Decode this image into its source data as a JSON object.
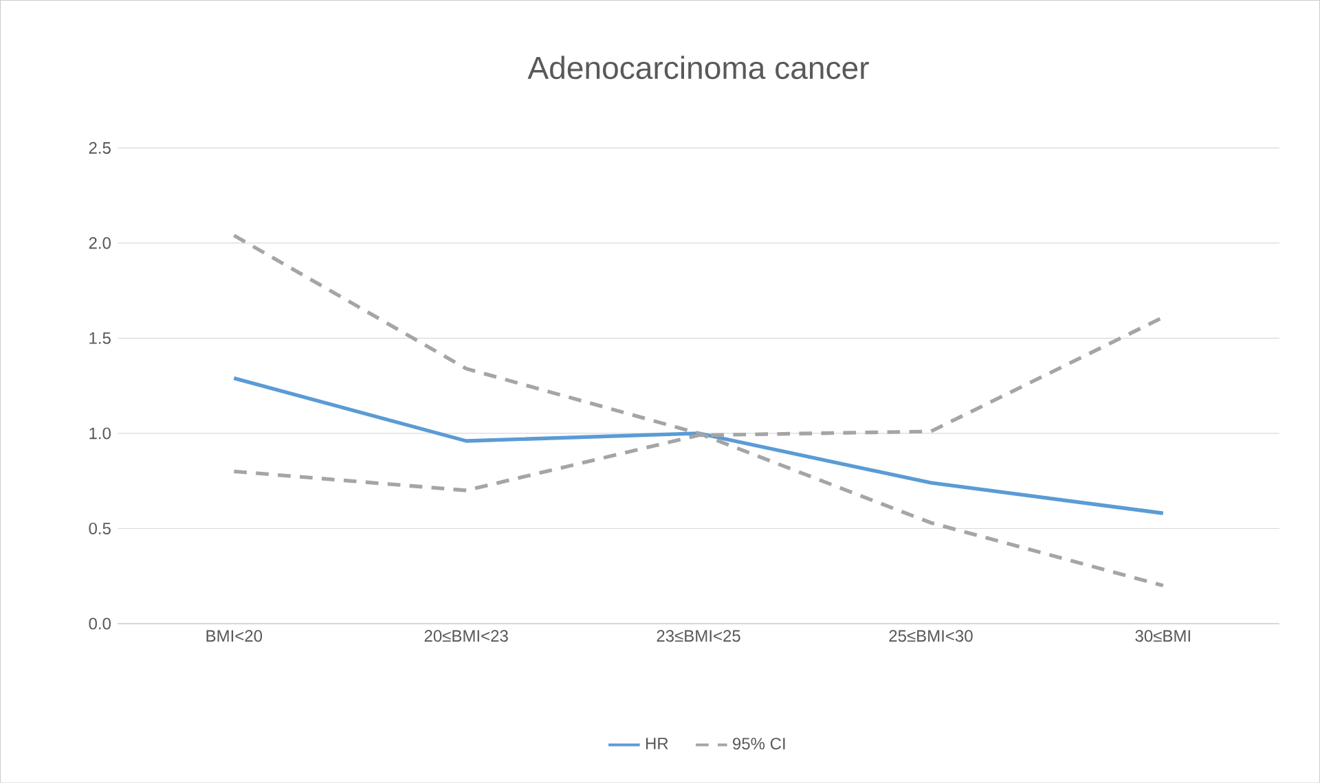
{
  "chart_data": {
    "type": "line",
    "title": "Adenocarcinoma cancer",
    "categories": [
      "BMI<20",
      "20≤BMI<23",
      "23≤BMI<25",
      "25≤BMI<30",
      "30≤BMI"
    ],
    "series": [
      {
        "name": "HR",
        "color": "#5b9bd5",
        "line_style": "solid",
        "values": [
          1.29,
          0.96,
          1.0,
          0.74,
          0.58
        ]
      },
      {
        "name": "95% CI",
        "color": "#a5a5a5",
        "line_style": "dashed",
        "values": [
          2.04,
          1.34,
          1.0,
          0.53,
          0.2
        ]
      },
      {
        "color": "#a5a5a5",
        "line_style": "dashed",
        "values": [
          0.8,
          0.7,
          0.99,
          1.01,
          1.61
        ]
      }
    ],
    "ylim": [
      0,
      2.5
    ],
    "yticks": [
      {
        "value": 0,
        "label": "0.0"
      },
      {
        "value": 0.5,
        "label": "0.5"
      },
      {
        "value": 1,
        "label": "1.0"
      },
      {
        "value": 1.5,
        "label": "1.5"
      },
      {
        "value": 2,
        "label": "2.0"
      },
      {
        "value": 2.5,
        "label": "2.5"
      }
    ],
    "grid": "y",
    "legend": "bottom",
    "marker": "none"
  }
}
